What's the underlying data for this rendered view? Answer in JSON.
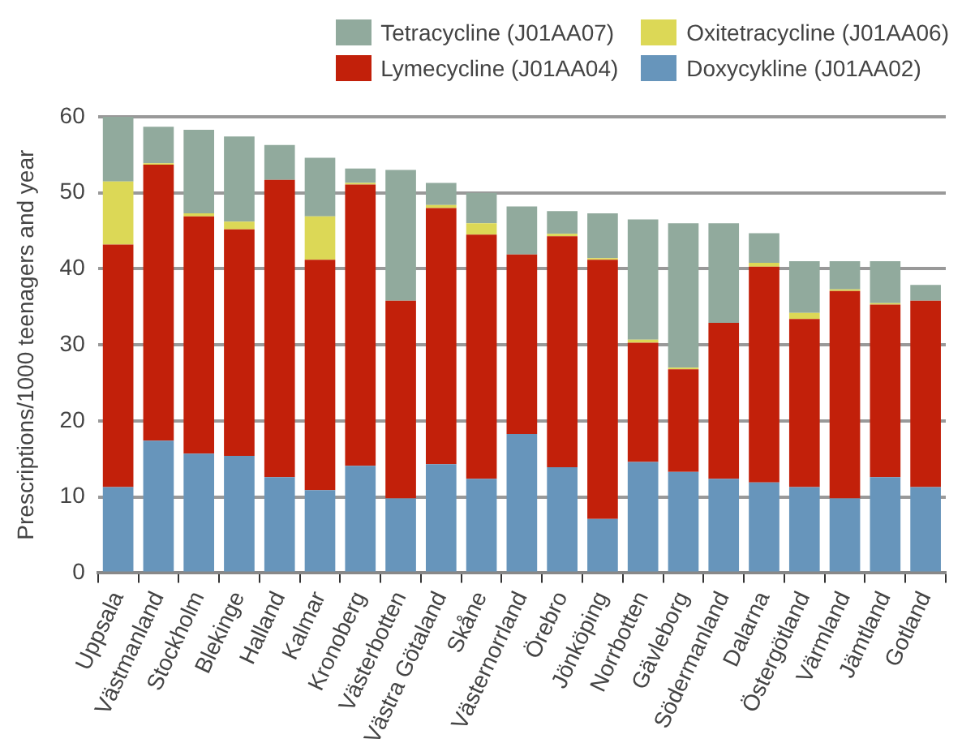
{
  "chart_data": {
    "type": "bar",
    "stacked": true,
    "ylabel": "Prescriptions/1000 teenagers and year",
    "categories": [
      "Uppsala",
      "Västmanland",
      "Stockholm",
      "Blekinge",
      "Halland",
      "Kalmar",
      "Kronoberg",
      "Västerbotten",
      "Västra Götaland",
      "Skåne",
      "Västernorrland",
      "Örebro",
      "Jönköping",
      "Norrbotten",
      "Gävleborg",
      "Södermanland",
      "Dalarna",
      "Östergötland",
      "Värmland",
      "Jämtland",
      "Gotland"
    ],
    "series": [
      {
        "name": "Doxycykline (J01AA02)",
        "color": "#6795bb",
        "values": [
          11.3,
          17.4,
          15.7,
          15.4,
          12.6,
          10.9,
          14.1,
          9.8,
          14.3,
          12.4,
          18.3,
          13.9,
          7.1,
          14.6,
          13.3,
          12.4,
          11.9,
          11.3,
          9.8,
          12.6,
          11.3
        ]
      },
      {
        "name": "Lymecycline (J01AA04)",
        "color": "#c2200a",
        "values": [
          31.9,
          36.3,
          31.2,
          29.8,
          39.1,
          30.3,
          37.0,
          26.0,
          33.7,
          32.1,
          23.6,
          30.4,
          34.1,
          15.7,
          13.5,
          20.5,
          28.4,
          22.1,
          27.3,
          22.7,
          24.5
        ]
      },
      {
        "name": "Oxitetracycline (J01AA06)",
        "color": "#dcd856",
        "values": [
          8.3,
          0.2,
          0.4,
          1.0,
          0,
          5.7,
          0.2,
          0,
          0.4,
          1.5,
          0,
          0.3,
          0.2,
          0.4,
          0.2,
          0,
          0.5,
          0.8,
          0.2,
          0.2,
          0
        ]
      },
      {
        "name": "Tetracycline (J01AA07)",
        "color": "#91aa9d",
        "values": [
          8.5,
          4.8,
          11.0,
          11.2,
          4.6,
          7.7,
          1.9,
          17.2,
          2.9,
          4.0,
          6.3,
          3.0,
          5.9,
          15.8,
          19.0,
          13.1,
          3.9,
          6.8,
          3.7,
          5.5,
          2.1
        ]
      }
    ],
    "ylim": [
      0,
      60
    ],
    "yticks": [
      0,
      10,
      20,
      30,
      40,
      50,
      60
    ],
    "grid": "y",
    "legend": "top right"
  }
}
